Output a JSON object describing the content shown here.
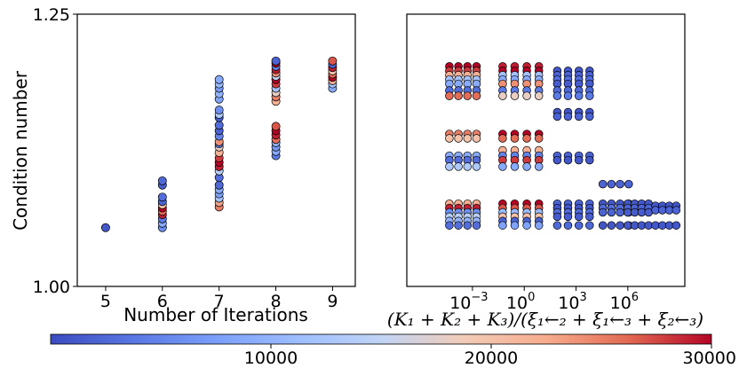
{
  "chart_data": [
    {
      "type": "scatter",
      "xlabel": "Number of Iterations",
      "ylabel": "Condition number",
      "xticks": [
        "5",
        "6",
        "7",
        "8",
        "9"
      ],
      "yticks": [
        "1.00",
        "1.25"
      ],
      "xlim": [
        4.5,
        9.4
      ],
      "ylim": [
        1.0,
        1.25
      ],
      "grid": false,
      "points": [
        {
          "x": 5,
          "y": 1.054,
          "c": 1000
        },
        {
          "x": 6,
          "y": 1.054,
          "c": 6000
        },
        {
          "x": 6,
          "y": 1.058,
          "c": 9000
        },
        {
          "x": 6,
          "y": 1.062,
          "c": 4000
        },
        {
          "x": 6,
          "y": 1.066,
          "c": 29000
        },
        {
          "x": 6,
          "y": 1.069,
          "c": 26000
        },
        {
          "x": 6,
          "y": 1.072,
          "c": 30000
        },
        {
          "x": 6,
          "y": 1.075,
          "c": 20000
        },
        {
          "x": 6,
          "y": 1.078,
          "c": 2000
        },
        {
          "x": 6,
          "y": 1.082,
          "c": 3000
        },
        {
          "x": 6,
          "y": 1.093,
          "c": 1500
        },
        {
          "x": 6,
          "y": 1.097,
          "c": 2500
        },
        {
          "x": 7,
          "y": 1.073,
          "c": 25000
        },
        {
          "x": 7,
          "y": 1.077,
          "c": 23000
        },
        {
          "x": 7,
          "y": 1.081,
          "c": 12000
        },
        {
          "x": 7,
          "y": 1.085,
          "c": 8000
        },
        {
          "x": 7,
          "y": 1.089,
          "c": 9000
        },
        {
          "x": 7,
          "y": 1.093,
          "c": 2500
        },
        {
          "x": 7,
          "y": 1.1,
          "c": 3000
        },
        {
          "x": 7,
          "y": 1.106,
          "c": 14000
        },
        {
          "x": 7,
          "y": 1.11,
          "c": 29000
        },
        {
          "x": 7,
          "y": 1.114,
          "c": 30000
        },
        {
          "x": 7,
          "y": 1.118,
          "c": 28000
        },
        {
          "x": 7,
          "y": 1.123,
          "c": 22000
        },
        {
          "x": 7,
          "y": 1.128,
          "c": 18000
        },
        {
          "x": 7,
          "y": 1.131,
          "c": 4000
        },
        {
          "x": 7,
          "y": 1.133,
          "c": 24000
        },
        {
          "x": 7,
          "y": 1.138,
          "c": 5000
        },
        {
          "x": 7,
          "y": 1.143,
          "c": 2000
        },
        {
          "x": 7,
          "y": 1.148,
          "c": 3000
        },
        {
          "x": 7,
          "y": 1.155,
          "c": 1500
        },
        {
          "x": 7,
          "y": 1.158,
          "c": 13000
        },
        {
          "x": 7,
          "y": 1.162,
          "c": 6000
        },
        {
          "x": 7,
          "y": 1.172,
          "c": 8000
        },
        {
          "x": 7,
          "y": 1.177,
          "c": 10000
        },
        {
          "x": 7,
          "y": 1.182,
          "c": 7000
        },
        {
          "x": 7,
          "y": 1.186,
          "c": 11000
        },
        {
          "x": 7,
          "y": 1.19,
          "c": 9000
        },
        {
          "x": 8,
          "y": 1.12,
          "c": 4000
        },
        {
          "x": 8,
          "y": 1.124,
          "c": 9000
        },
        {
          "x": 8,
          "y": 1.128,
          "c": 7000
        },
        {
          "x": 8,
          "y": 1.132,
          "c": 10000
        },
        {
          "x": 8,
          "y": 1.135,
          "c": 26000
        },
        {
          "x": 8,
          "y": 1.139,
          "c": 29000
        },
        {
          "x": 8,
          "y": 1.143,
          "c": 30000
        },
        {
          "x": 8,
          "y": 1.147,
          "c": 27000
        },
        {
          "x": 8,
          "y": 1.17,
          "c": 22000
        },
        {
          "x": 8,
          "y": 1.174,
          "c": 25000
        },
        {
          "x": 8,
          "y": 1.178,
          "c": 18000
        },
        {
          "x": 8,
          "y": 1.182,
          "c": 12000
        },
        {
          "x": 8,
          "y": 1.186,
          "c": 28000
        },
        {
          "x": 8,
          "y": 1.19,
          "c": 30000
        },
        {
          "x": 8,
          "y": 1.193,
          "c": 15000
        },
        {
          "x": 8,
          "y": 1.196,
          "c": 24000
        },
        {
          "x": 8,
          "y": 1.199,
          "c": 29000
        },
        {
          "x": 8,
          "y": 1.202,
          "c": 5000
        },
        {
          "x": 8,
          "y": 1.205,
          "c": 30000
        },
        {
          "x": 8,
          "y": 1.207,
          "c": 2000
        },
        {
          "x": 9,
          "y": 1.182,
          "c": 9000
        },
        {
          "x": 9,
          "y": 1.186,
          "c": 12000
        },
        {
          "x": 9,
          "y": 1.189,
          "c": 22000
        },
        {
          "x": 9,
          "y": 1.192,
          "c": 30000
        },
        {
          "x": 9,
          "y": 1.195,
          "c": 26000
        },
        {
          "x": 9,
          "y": 1.198,
          "c": 19000
        },
        {
          "x": 9,
          "y": 1.201,
          "c": 29000
        },
        {
          "x": 9,
          "y": 1.204,
          "c": 2000
        },
        {
          "x": 9,
          "y": 1.207,
          "c": 27000
        }
      ]
    },
    {
      "type": "scatter",
      "xlabel": "(K₁ + K₂ + K₃)/(ξ₁←₂ + ξ₁←₃ + ξ₂←₃)",
      "xscale": "log",
      "xticks": [
        {
          "value": 0.001,
          "label": "10",
          "exp": "−3"
        },
        {
          "value": 1,
          "label": "10",
          "exp": "0"
        },
        {
          "value": 1000,
          "label": "10",
          "exp": "3"
        },
        {
          "value": 1000000,
          "label": "10",
          "exp": "6"
        }
      ],
      "xlim_log10": [
        -6.8,
        9.3
      ],
      "ylim": [
        1.0,
        1.25
      ],
      "grid": false,
      "point_groups": [
        {
          "x_range_log10": [
            -4.6,
            -2.5
          ],
          "y": [
            1.202,
            1.198,
            1.194,
            1.19,
            1.186,
            1.18,
            1.175
          ],
          "c": [
            30000,
            28000,
            22000,
            12000,
            9000,
            3000,
            26000
          ]
        },
        {
          "x_range_log10": [
            -4.6,
            -2.5
          ],
          "y": [
            1.14,
            1.136,
            1.12,
            1.116,
            1.11
          ],
          "c": [
            25000,
            20000,
            9000,
            3000,
            13000
          ]
        },
        {
          "x_range_log10": [
            -4.6,
            -2.5
          ],
          "y": [
            1.076,
            1.072,
            1.068,
            1.064,
            1.06,
            1.056
          ],
          "c": [
            22000,
            29000,
            6000,
            14000,
            10000,
            3000
          ]
        },
        {
          "x_range_log10": [
            -1.6,
            1.2
          ],
          "y": [
            1.202,
            1.198,
            1.194,
            1.19,
            1.186,
            1.18,
            1.175
          ],
          "c": [
            29000,
            30000,
            12000,
            9000,
            24000,
            4000,
            18000
          ]
        },
        {
          "x_range_log10": [
            -1.6,
            1.2
          ],
          "y": [
            1.14,
            1.136,
            1.125,
            1.12,
            1.116,
            1.11
          ],
          "c": [
            30000,
            26000,
            22000,
            5000,
            28000,
            9000
          ]
        },
        {
          "x_range_log10": [
            -1.6,
            1.2
          ],
          "y": [
            1.076,
            1.072,
            1.068,
            1.064,
            1.06,
            1.056
          ],
          "c": [
            30000,
            27000,
            11000,
            20000,
            2000,
            8000
          ]
        },
        {
          "x_range_log10": [
            1.6,
            4.1
          ],
          "y": [
            1.198,
            1.194,
            1.19,
            1.186,
            1.18,
            1.175,
            1.16,
            1.156
          ],
          "c": [
            1000,
            2000,
            3000,
            1500,
            2500,
            4000,
            1000,
            2000
          ]
        },
        {
          "x_range_log10": [
            1.6,
            4.1
          ],
          "y": [
            1.12,
            1.116
          ],
          "c": [
            2000,
            1000
          ]
        },
        {
          "x_range_log10": [
            1.6,
            4.1
          ],
          "y": [
            1.076,
            1.072,
            1.068,
            1.064,
            1.056
          ],
          "c": [
            2000,
            1000,
            3000,
            1500,
            2500
          ]
        },
        {
          "x_range_log10": [
            4.3,
            6.3
          ],
          "y": [
            1.094,
            1.076,
            1.072,
            1.068,
            1.056
          ],
          "c": [
            2000,
            1000,
            3000,
            2000,
            1000
          ]
        },
        {
          "x_range_log10": [
            5.8,
            7.4
          ],
          "y": [
            1.076,
            1.072,
            1.068,
            1.056
          ],
          "c": [
            1000,
            2000,
            1500,
            1000
          ]
        },
        {
          "x_range_log10": [
            7.4,
            9.0
          ],
          "y": [
            1.074,
            1.07,
            1.056
          ],
          "c": [
            1000,
            2000,
            1000
          ]
        }
      ]
    }
  ],
  "colorbar": {
    "ticks": [
      {
        "value": 10000,
        "label": "10000"
      },
      {
        "value": 20000,
        "label": "20000"
      },
      {
        "value": 30000,
        "label": "30000"
      }
    ],
    "range": [
      0,
      30000
    ],
    "colormap": "coolwarm"
  },
  "colors": {
    "low": "#3b4cc0",
    "mid": "#dddddd",
    "high": "#b40426",
    "edge": "#000000"
  }
}
